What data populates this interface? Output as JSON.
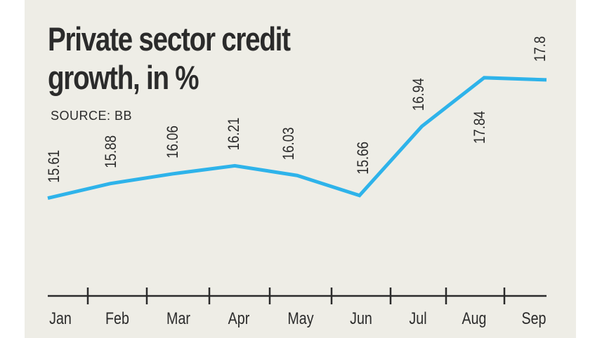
{
  "title_lines": [
    "Private sector credit",
    "growth, in %"
  ],
  "source": "SOURCE: BB",
  "colors": {
    "background": "#eeede6",
    "line": "#2eb3ea",
    "text": "#2b2b2b",
    "axis": "#2b2b2b"
  },
  "chart_data": {
    "type": "line",
    "title": "Private sector credit growth, in %",
    "source": "SOURCE: BB",
    "categories": [
      "Jan",
      "Feb",
      "Mar",
      "Apr",
      "May",
      "Jun",
      "Jul",
      "Aug",
      "Sep"
    ],
    "series": [
      {
        "name": "Private sector credit growth",
        "values": [
          15.61,
          15.88,
          16.06,
          16.21,
          16.03,
          15.66,
          16.94,
          17.84,
          17.8
        ],
        "labels": [
          "15.61",
          "15.88",
          "16.06",
          "16.21",
          "16.03",
          "15.66",
          "16.94",
          "17.84",
          "17.8"
        ]
      }
    ],
    "xlabel": "",
    "ylabel": "",
    "ylim": [
      13.8,
      18.5
    ],
    "grid": false,
    "legend": "none",
    "label_orientation": "vertical"
  }
}
